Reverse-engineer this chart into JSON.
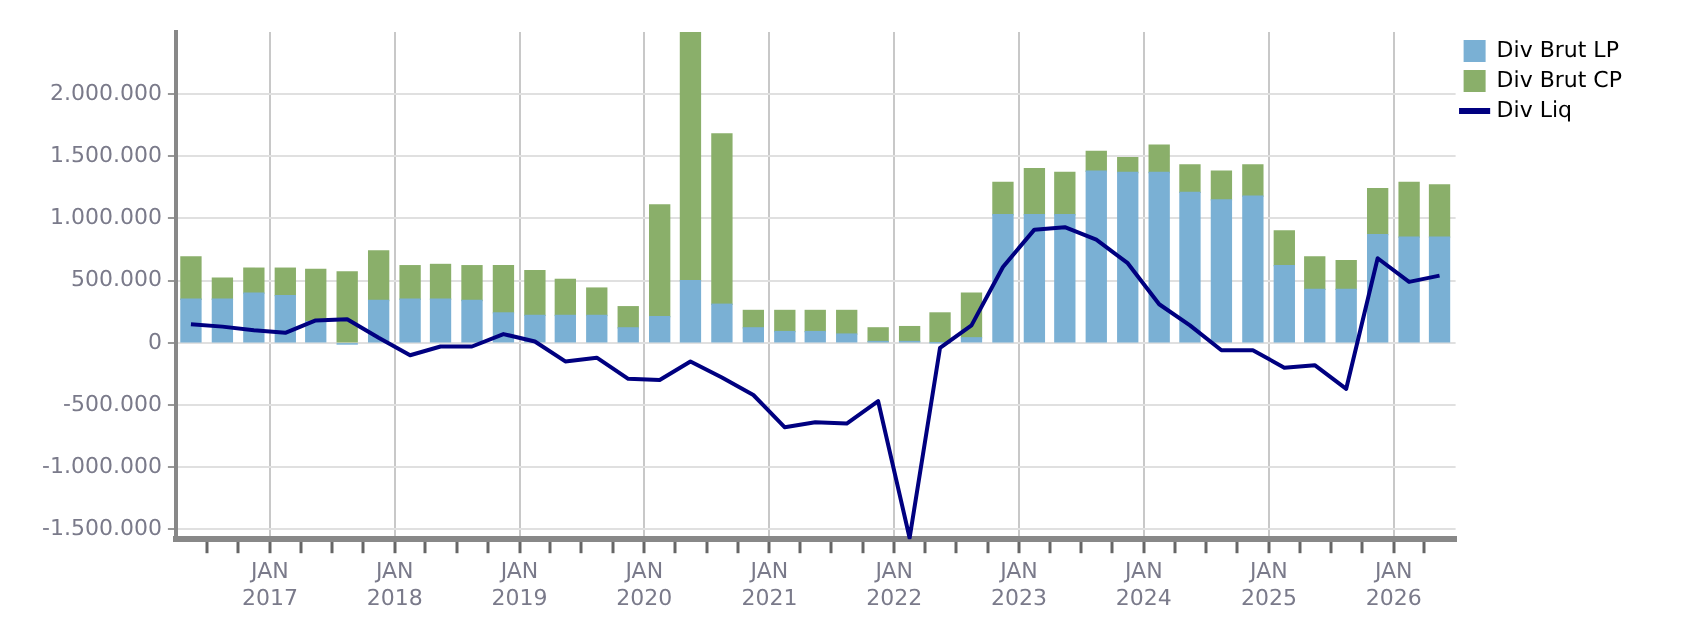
{
  "chart_data": {
    "type": "bar",
    "stacked": true,
    "grid": true,
    "legend": "top right",
    "x": [
      "2016-05-15",
      "2016-08-15",
      "2016-11-15",
      "2017-02-15",
      "2017-05-15",
      "2017-08-15",
      "2017-11-15",
      "2018-02-15",
      "2018-05-15",
      "2018-08-15",
      "2018-11-15",
      "2019-02-15",
      "2019-05-15",
      "2019-08-15",
      "2019-11-15",
      "2020-02-15",
      "2020-05-15",
      "2020-08-15",
      "2020-11-15",
      "2021-02-15",
      "2021-05-15",
      "2021-08-15",
      "2021-11-15",
      "2022-02-15",
      "2022-05-15",
      "2022-08-15",
      "2022-11-15",
      "2023-02-15",
      "2023-05-15",
      "2023-08-15",
      "2023-11-15",
      "2024-02-15",
      "2024-05-15",
      "2024-08-15",
      "2024-11-15",
      "2025-02-15",
      "2025-05-15",
      "2025-08-15",
      "2025-11-15",
      "2026-02-15",
      "2026-05-15"
    ],
    "xlim": [
      "2016-04-01",
      "2026-07-01"
    ],
    "xticks": [
      {
        "value": "2016-07-01",
        "label": null
      },
      {
        "value": "2016-10-01",
        "label": null
      },
      {
        "value": "2017-01-01",
        "label": "JAN 2017"
      },
      {
        "value": "2017-04-01",
        "label": null
      },
      {
        "value": "2017-07-01",
        "label": null
      },
      {
        "value": "2017-10-01",
        "label": null
      },
      {
        "value": "2018-01-01",
        "label": "JAN 2018"
      },
      {
        "value": "2018-04-01",
        "label": null
      },
      {
        "value": "2018-07-01",
        "label": null
      },
      {
        "value": "2018-10-01",
        "label": null
      },
      {
        "value": "2019-01-01",
        "label": "JAN 2019"
      },
      {
        "value": "2019-04-01",
        "label": null
      },
      {
        "value": "2019-07-01",
        "label": null
      },
      {
        "value": "2019-10-01",
        "label": null
      },
      {
        "value": "2020-01-01",
        "label": "JAN 2020"
      },
      {
        "value": "2020-04-01",
        "label": null
      },
      {
        "value": "2020-07-01",
        "label": null
      },
      {
        "value": "2020-10-01",
        "label": null
      },
      {
        "value": "2021-01-01",
        "label": "JAN 2021"
      },
      {
        "value": "2021-04-01",
        "label": null
      },
      {
        "value": "2021-07-01",
        "label": null
      },
      {
        "value": "2021-10-01",
        "label": null
      },
      {
        "value": "2022-01-01",
        "label": "JAN 2022"
      },
      {
        "value": "2022-04-01",
        "label": null
      },
      {
        "value": "2022-07-01",
        "label": null
      },
      {
        "value": "2022-10-01",
        "label": null
      },
      {
        "value": "2023-01-01",
        "label": "JAN 2023"
      },
      {
        "value": "2023-04-01",
        "label": null
      },
      {
        "value": "2023-07-01",
        "label": null
      },
      {
        "value": "2023-10-01",
        "label": null
      },
      {
        "value": "2024-01-01",
        "label": "JAN 2024"
      },
      {
        "value": "2024-04-01",
        "label": null
      },
      {
        "value": "2024-07-01",
        "label": null
      },
      {
        "value": "2024-10-01",
        "label": null
      },
      {
        "value": "2025-01-01",
        "label": "JAN 2025"
      },
      {
        "value": "2025-04-01",
        "label": null
      },
      {
        "value": "2025-07-01",
        "label": null
      },
      {
        "value": "2025-10-01",
        "label": null
      },
      {
        "value": "2026-01-01",
        "label": "JAN 2026"
      },
      {
        "value": "2026-04-01",
        "label": null
      }
    ],
    "ylim": [
      -1580000,
      2500000
    ],
    "yticks": [
      {
        "value": -1500000,
        "label": "-1.500.000"
      },
      {
        "value": -1000000,
        "label": "-1.000.000"
      },
      {
        "value": -500000,
        "label": "-500.000"
      },
      0,
      {
        "value": 500000,
        "label": "500.000"
      },
      {
        "value": 1000000,
        "label": "1.000.000"
      },
      {
        "value": 1500000,
        "label": "1.500.000"
      },
      {
        "value": 2000000,
        "label": "2.000.000"
      }
    ],
    "series": [
      {
        "name": "Div Brut LP",
        "color": "#7ab0d4",
        "values": [
          350000,
          350000,
          400000,
          380000,
          170000,
          -10000,
          340000,
          350000,
          350000,
          340000,
          240000,
          220000,
          220000,
          220000,
          120000,
          210000,
          500000,
          310000,
          120000,
          90000,
          90000,
          70000,
          10000,
          10000,
          0,
          40000,
          1030000,
          1030000,
          1030000,
          1380000,
          1370000,
          1370000,
          1210000,
          1150000,
          1180000,
          620000,
          430000,
          430000,
          870000,
          850000,
          850000
        ]
      },
      {
        "name": "Div Brut CP",
        "color": "#8aaf6a",
        "values": [
          340000,
          170000,
          200000,
          220000,
          420000,
          570000,
          400000,
          270000,
          280000,
          280000,
          380000,
          360000,
          290000,
          220000,
          170000,
          900000,
          2000000,
          1370000,
          140000,
          170000,
          170000,
          190000,
          110000,
          120000,
          240000,
          360000,
          260000,
          370000,
          340000,
          160000,
          120000,
          220000,
          220000,
          230000,
          250000,
          280000,
          260000,
          230000,
          370000,
          440000,
          420000
        ]
      },
      {
        "name": "Div Liq",
        "type": "line",
        "color": "#000080",
        "marker": "none",
        "values": [
          150000,
          130000,
          100000,
          80000,
          180000,
          190000,
          40000,
          -100000,
          -30000,
          -30000,
          70000,
          10000,
          -150000,
          -120000,
          -290000,
          -300000,
          -150000,
          -280000,
          -420000,
          -680000,
          -640000,
          -650000,
          -470000,
          -1570000,
          -40000,
          140000,
          610000,
          910000,
          930000,
          830000,
          640000,
          310000,
          140000,
          -60000,
          -60000,
          -200000,
          -180000,
          -370000,
          680000,
          490000,
          540000
        ]
      }
    ]
  }
}
